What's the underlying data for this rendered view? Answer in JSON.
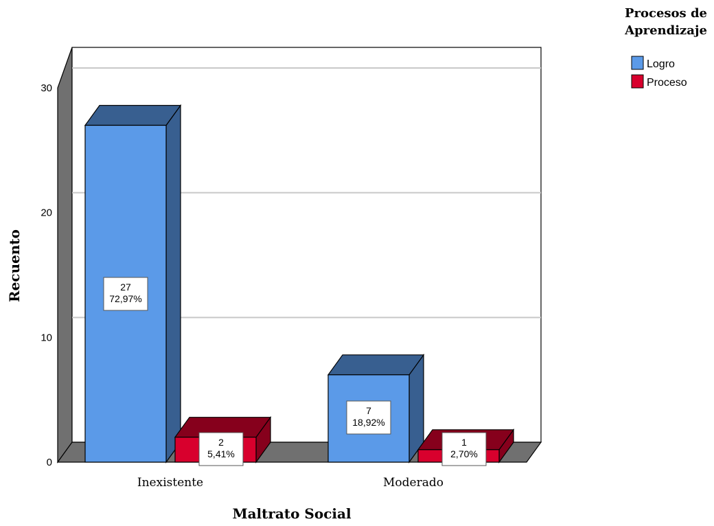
{
  "chart_data": {
    "type": "bar",
    "three_d": true,
    "title": "",
    "xlabel": "Maltrato Social",
    "ylabel": "Recuento",
    "categories": [
      "Inexistente",
      "Moderado"
    ],
    "series": [
      {
        "name": "Logro",
        "color": "#5b9ae8",
        "values": [
          27,
          7
        ],
        "labels": [
          "27\n72,97%",
          "7\n18,92%"
        ]
      },
      {
        "name": "Proceso",
        "color": "#d8002d",
        "values": [
          2,
          1
        ],
        "labels": [
          "2\n5,41%",
          "1\n2,70%"
        ]
      }
    ],
    "ylim": [
      0,
      30
    ],
    "yticks": [
      0,
      10,
      20,
      30
    ],
    "grid": true,
    "legend": {
      "title_lines": [
        "Procesos de",
        "Aprendizaje"
      ],
      "position": "top-right"
    }
  }
}
